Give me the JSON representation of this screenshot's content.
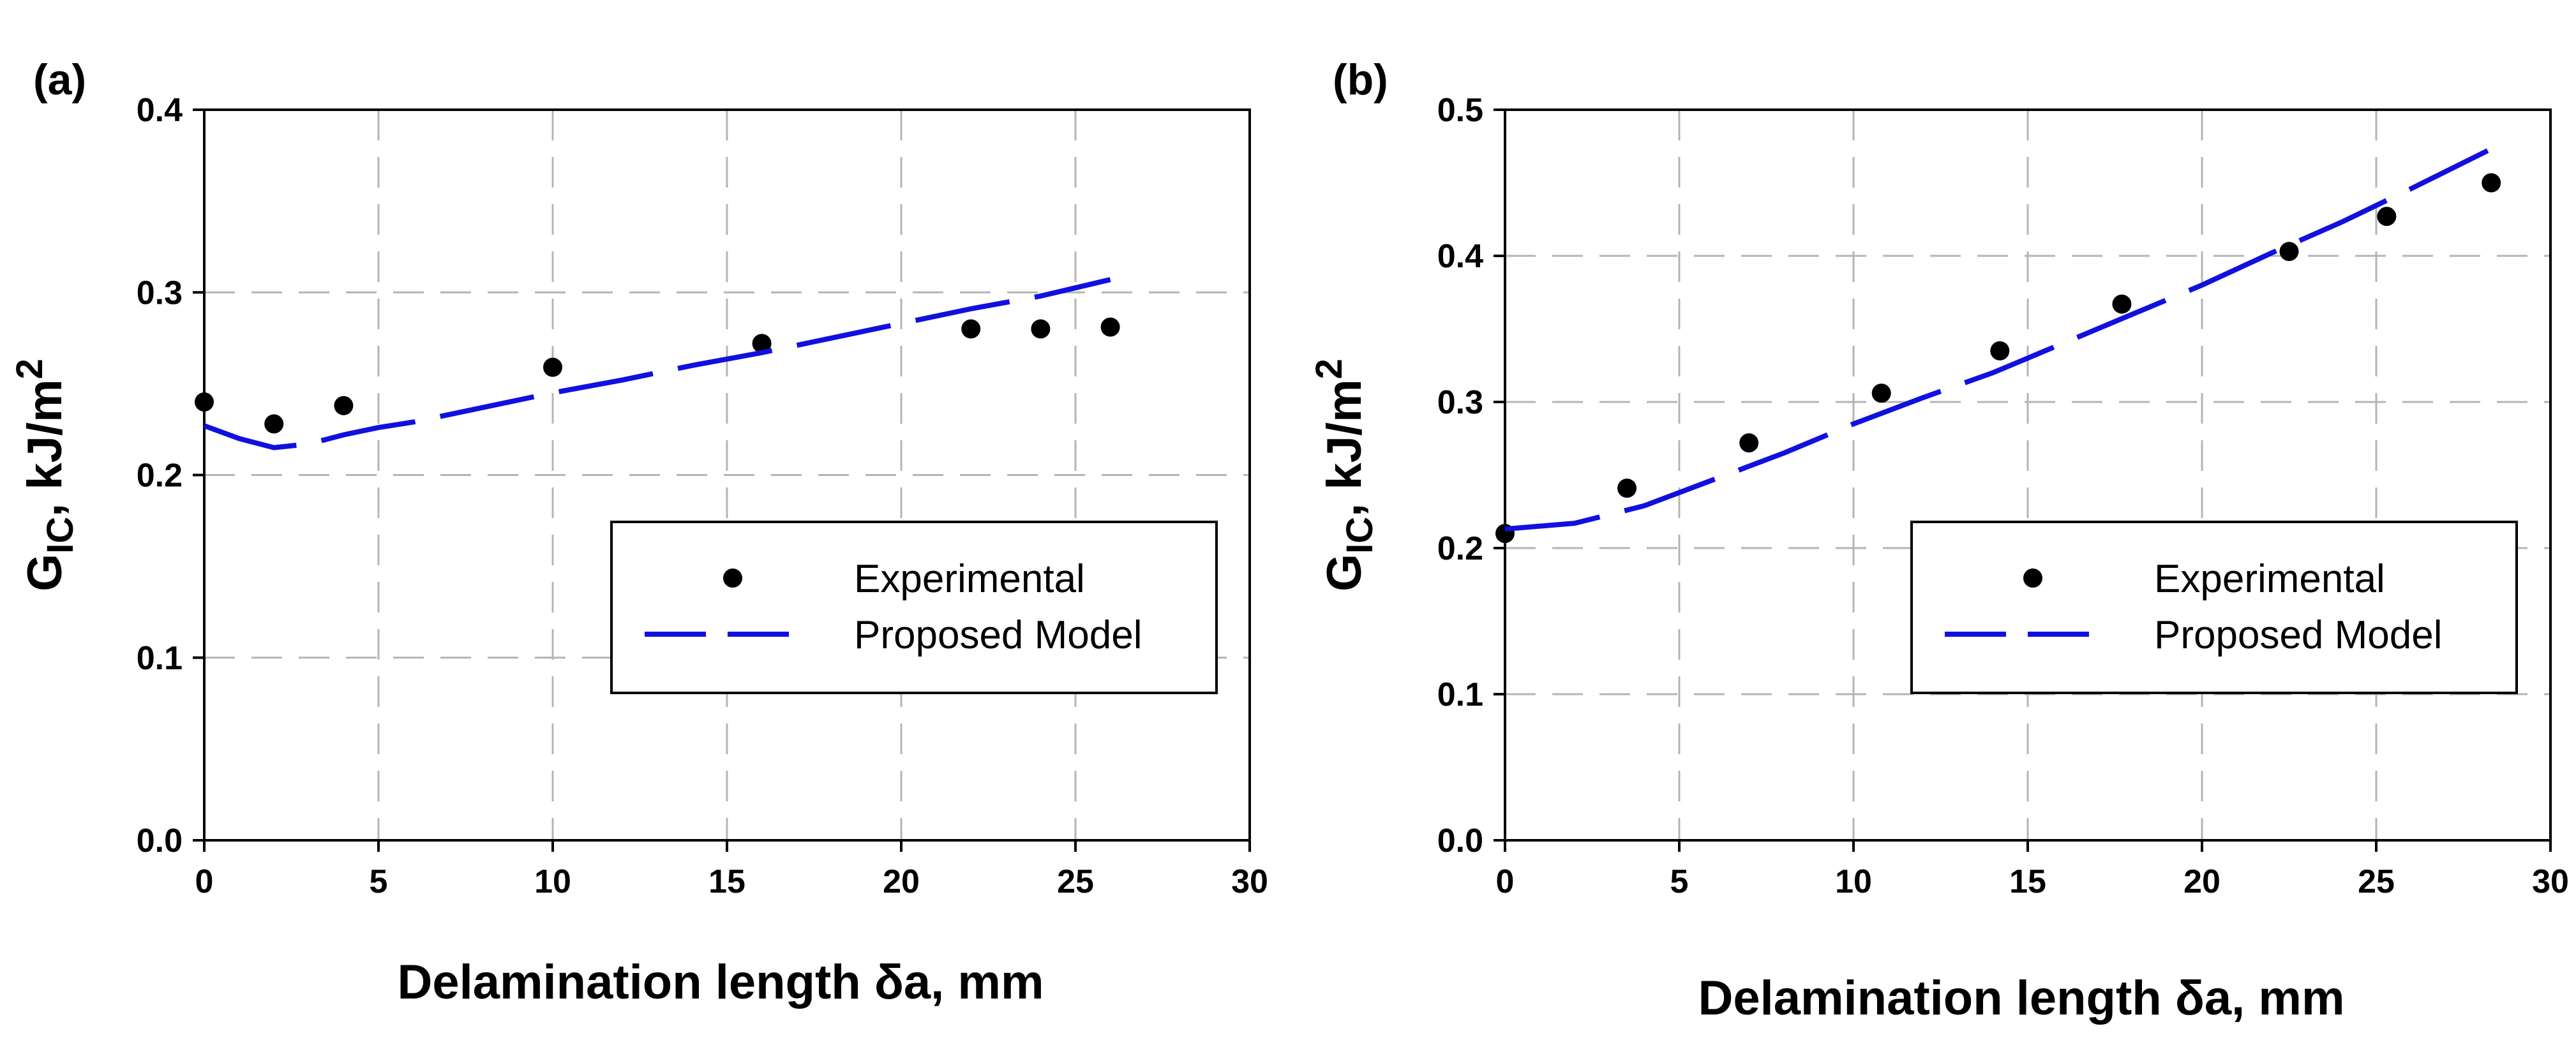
{
  "chart_data": [
    {
      "type": "scatter",
      "panel_label": "(a)",
      "xlabel": "Delamination length δa, mm",
      "ylabel": "G",
      "ylabel_sub": "IC",
      "ylabel_unit": ", kJ/m",
      "ylabel_sup": "2",
      "xlim": [
        0,
        30
      ],
      "ylim": [
        0,
        0.4
      ],
      "xticks": [
        "0",
        "5",
        "10",
        "15",
        "20",
        "25",
        "30"
      ],
      "yticks": [
        "0.0",
        "0.1",
        "0.2",
        "0.3",
        "0.4"
      ],
      "grid": true,
      "legend_position": "center-right",
      "colors": {
        "model": "#1010e0",
        "points": "#000000"
      },
      "series": [
        {
          "name": "Experimental",
          "kind": "scatter",
          "x": [
            0,
            2,
            4,
            10,
            16,
            22,
            24,
            26
          ],
          "y": [
            0.24,
            0.228,
            0.238,
            0.259,
            0.272,
            0.28,
            0.28,
            0.281
          ]
        },
        {
          "name": "Proposed Model",
          "kind": "dashed-line",
          "x": [
            0,
            1,
            2,
            3,
            4,
            5,
            6,
            8,
            10,
            12,
            14,
            16,
            18,
            20,
            22,
            24,
            26
          ],
          "y": [
            0.227,
            0.22,
            0.215,
            0.217,
            0.222,
            0.226,
            0.229,
            0.237,
            0.245,
            0.252,
            0.26,
            0.267,
            0.275,
            0.283,
            0.291,
            0.298,
            0.307
          ]
        }
      ]
    },
    {
      "type": "scatter",
      "panel_label": "(b)",
      "xlabel": "Delamination length δa, mm",
      "ylabel": "G",
      "ylabel_sub": "IC",
      "ylabel_unit": ", kJ/m",
      "ylabel_sup": "2",
      "xlim": [
        0,
        30
      ],
      "ylim": [
        0,
        0.5
      ],
      "xticks": [
        "0",
        "5",
        "10",
        "15",
        "20",
        "25",
        "30"
      ],
      "yticks": [
        "0.0",
        "0.1",
        "0.2",
        "0.3",
        "0.4",
        "0.5"
      ],
      "grid": true,
      "legend_position": "center-right",
      "colors": {
        "model": "#1010e0",
        "points": "#000000"
      },
      "series": [
        {
          "name": "Experimental",
          "kind": "scatter",
          "x": [
            0,
            3.5,
            7,
            10.8,
            14.2,
            17.7,
            22.5,
            25.3,
            28.3
          ],
          "y": [
            0.21,
            0.241,
            0.272,
            0.306,
            0.335,
            0.367,
            0.403,
            0.427,
            0.45
          ]
        },
        {
          "name": "Proposed Model",
          "kind": "dashed-line",
          "x": [
            0,
            2,
            4,
            6,
            8,
            10,
            12,
            14,
            16,
            18,
            20,
            22,
            24,
            26,
            28.2
          ],
          "y": [
            0.213,
            0.217,
            0.229,
            0.247,
            0.265,
            0.285,
            0.303,
            0.32,
            0.34,
            0.36,
            0.38,
            0.402,
            0.423,
            0.446,
            0.472
          ]
        }
      ]
    }
  ]
}
